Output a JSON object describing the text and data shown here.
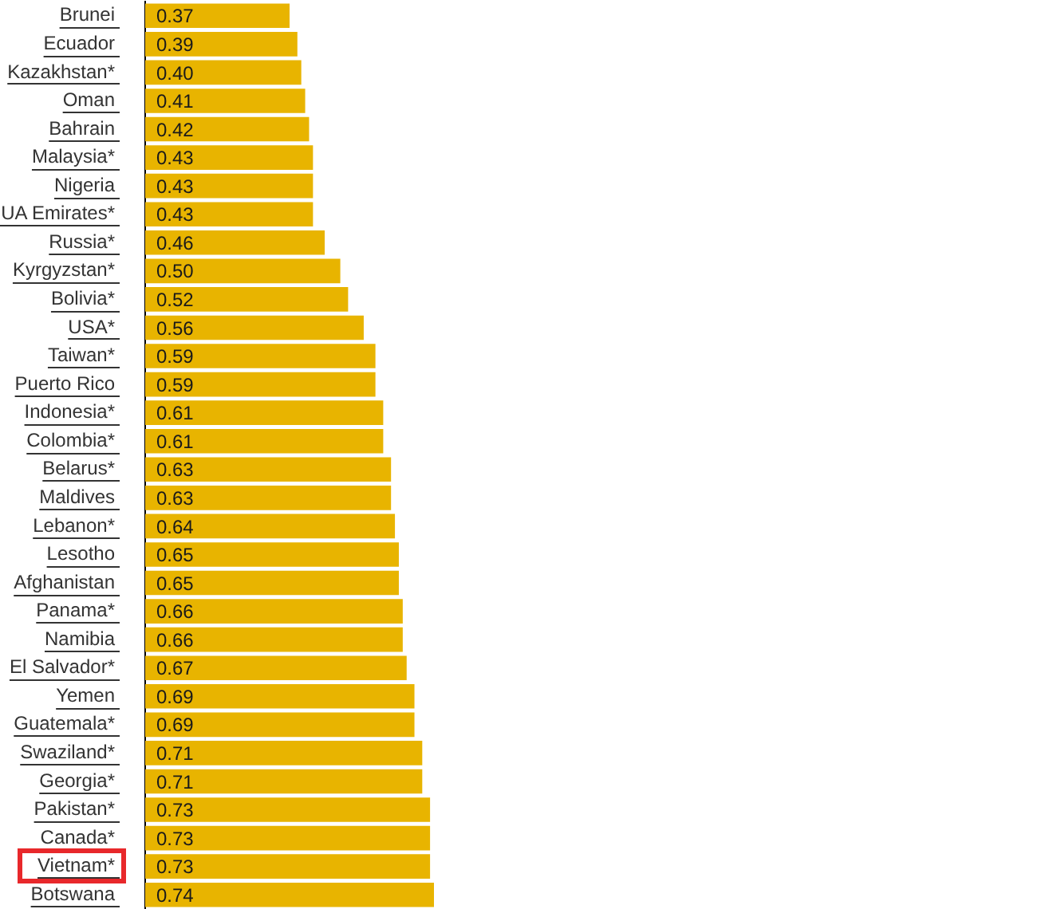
{
  "chart_data": {
    "type": "bar",
    "orientation": "horizontal",
    "tick_labels": "y",
    "color": "#e8b400",
    "categories": [
      "Brunei",
      "Ecuador",
      "Kazakhstan*",
      "Oman",
      "Bahrain",
      "Malaysia*",
      "Nigeria",
      "UA Emirates*",
      "Russia*",
      "Kyrgyzstan*",
      "Bolivia*",
      "USA*",
      "Taiwan*",
      "Puerto Rico",
      "Indonesia*",
      "Colombia*",
      "Belarus*",
      "Maldives",
      "Lebanon*",
      "Lesotho",
      "Afghanistan",
      "Panama*",
      "Namibia",
      "El Salvador*",
      "Yemen",
      "Guatemala*",
      "Swaziland*",
      "Georgia*",
      "Pakistan*",
      "Canada*",
      "Vietnam*",
      "Botswana"
    ],
    "values": [
      0.37,
      0.39,
      0.4,
      0.41,
      0.42,
      0.43,
      0.43,
      0.43,
      0.46,
      0.5,
      0.52,
      0.56,
      0.59,
      0.59,
      0.61,
      0.61,
      0.63,
      0.63,
      0.64,
      0.65,
      0.65,
      0.66,
      0.66,
      0.67,
      0.69,
      0.69,
      0.71,
      0.71,
      0.73,
      0.73,
      0.73,
      0.74
    ],
    "value_labels": [
      "0.37",
      "0.39",
      "0.40",
      "0.41",
      "0.42",
      "0.43",
      "0.43",
      "0.43",
      "0.46",
      "0.50",
      "0.52",
      "0.56",
      "0.59",
      "0.59",
      "0.61",
      "0.61",
      "0.63",
      "0.63",
      "0.64",
      "0.65",
      "0.65",
      "0.66",
      "0.66",
      "0.67",
      "0.69",
      "0.69",
      "0.71",
      "0.71",
      "0.73",
      "0.73",
      "0.73",
      "0.74"
    ]
  }
}
